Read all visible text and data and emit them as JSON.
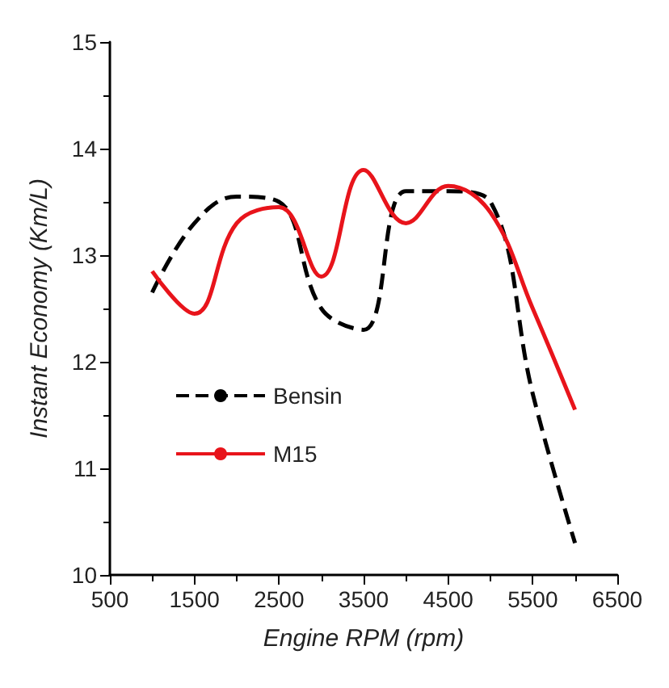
{
  "chart_data": {
    "type": "line",
    "xlabel": "Engine RPM (rpm)",
    "ylabel": "Instant Economy (Km/L)",
    "x": [
      1000,
      1500,
      2000,
      2500,
      3000,
      3500,
      4000,
      4500,
      5000,
      5500,
      6000
    ],
    "series": [
      {
        "name": "Bensin",
        "color": "#000000",
        "line_style": "dashed",
        "values": [
          12.65,
          13.3,
          13.55,
          13.5,
          12.5,
          12.3,
          13.6,
          13.6,
          13.5,
          11.7,
          10.3
        ]
      },
      {
        "name": "M15",
        "color": "#e8141b",
        "line_style": "solid",
        "values": [
          12.85,
          12.45,
          13.3,
          13.45,
          12.8,
          13.8,
          13.3,
          13.65,
          13.4,
          12.5,
          11.55
        ]
      }
    ],
    "xlim": [
      500,
      6500
    ],
    "xticks": [
      500,
      1500,
      2500,
      3500,
      4500,
      5500,
      6500
    ],
    "ylim": [
      10,
      15
    ],
    "yticks": [
      10,
      11,
      12,
      13,
      14,
      15
    ],
    "grid": false,
    "legend": "left",
    "marker": "none"
  }
}
